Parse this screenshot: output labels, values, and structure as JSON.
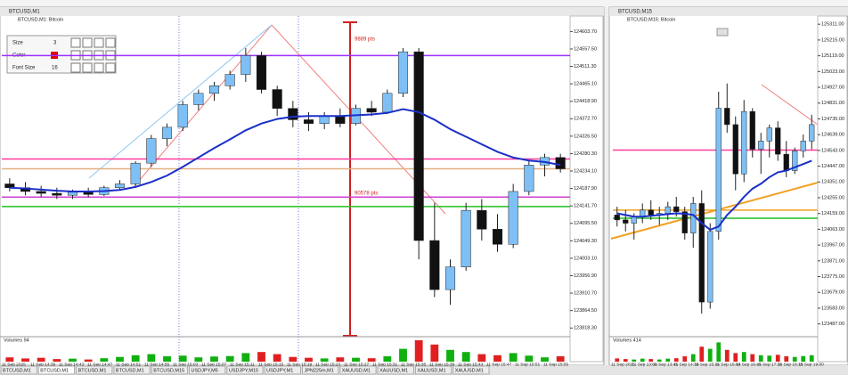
{
  "windows": [
    {
      "title": "BTCUSD,M1"
    },
    {
      "title": "BTCUSD,M15"
    }
  ],
  "toolbox": {
    "size_label": "Size",
    "size_value": "3",
    "color_label": "Color",
    "font_label": "Font Size",
    "font_value": "16"
  },
  "tabs": [
    "BTCUSD,M1",
    "BTCUSD,M1",
    "BTCUSD,M1",
    "BTCUSD,M1",
    "BTCUSD,M15",
    "USDJPY,M5",
    "USDJPY,M15",
    "USDJPY,M1",
    "JPN225m,M1",
    "XAUUSD,M1",
    "XAUUSD,M1",
    "XAUUSD,M1",
    "XAUUSD,M1"
  ],
  "chart_data": [
    {
      "type": "candlestick",
      "title": "BTCUSD,M1: Bitcoin",
      "ylim": [
        123800,
        124640
      ],
      "yticks": [
        {
          "value": 124603.7,
          "label": "124603.70"
        },
        {
          "value": 124557.5,
          "label": "124557.50"
        },
        {
          "value": 124511.3,
          "label": "124511.30"
        },
        {
          "value": 124465.1,
          "label": "124465.10"
        },
        {
          "value": 124418.9,
          "label": "124418.90"
        },
        {
          "value": 124372.7,
          "label": "124372.70"
        },
        {
          "value": 124326.5,
          "label": "124326.50"
        },
        {
          "value": 124280.3,
          "label": "124280.30"
        },
        {
          "value": 124234.1,
          "label": "124234.10"
        },
        {
          "value": 124187.9,
          "label": "124187.90"
        },
        {
          "value": 124141.7,
          "label": "124141.70"
        },
        {
          "value": 124095.5,
          "label": "124095.50"
        },
        {
          "value": 124049.3,
          "label": "124049.30"
        },
        {
          "value": 124003.1,
          "label": "124003.10"
        },
        {
          "value": 123956.9,
          "label": "123956.90"
        },
        {
          "value": 123910.7,
          "label": "123910.70"
        },
        {
          "value": 123864.5,
          "label": "123864.50"
        },
        {
          "value": 123818.3,
          "label": "123818.30"
        }
      ],
      "open": [
        124200,
        124190,
        124180,
        124175,
        124170,
        124178,
        124172,
        124190,
        124200,
        124255,
        124320,
        124350,
        124410,
        124440,
        124460,
        124490,
        124540,
        124450,
        124400,
        124370,
        124360,
        124380,
        124360,
        124400,
        124390,
        124440,
        124550,
        124050,
        123920,
        123980,
        124130,
        124080,
        124040,
        124180,
        124250,
        124270
      ],
      "high": [
        124215,
        124205,
        124195,
        124190,
        124185,
        124190,
        124195,
        124210,
        124260,
        124330,
        124360,
        124420,
        124450,
        124470,
        124500,
        124560,
        124550,
        124460,
        124420,
        124390,
        124390,
        124400,
        124410,
        124420,
        124450,
        124560,
        124560,
        124150,
        124000,
        124150,
        124160,
        124120,
        124200,
        124260,
        124280,
        124280
      ],
      "low": [
        124180,
        124170,
        124165,
        124160,
        124160,
        124165,
        124168,
        124185,
        124195,
        124245,
        124300,
        124340,
        124395,
        124420,
        124450,
        124470,
        124440,
        124380,
        124350,
        124340,
        124345,
        124350,
        124355,
        124380,
        124385,
        124430,
        124000,
        123900,
        123880,
        123970,
        124050,
        124020,
        124030,
        124170,
        124220,
        124230
      ],
      "close": [
        124190,
        124180,
        124175,
        124170,
        124178,
        124172,
        124190,
        124200,
        124255,
        124320,
        124350,
        124410,
        124440,
        124460,
        124490,
        124540,
        124450,
        124400,
        124370,
        124360,
        124380,
        124360,
        124400,
        124390,
        124440,
        124550,
        124050,
        123920,
        123980,
        124130,
        124080,
        124040,
        124180,
        124250,
        124270,
        124240
      ],
      "ma": {
        "color": "#1a2fc8",
        "values": [
          124190,
          124188,
          124185,
          124182,
          124180,
          124180,
          124181,
          124184,
          124192,
          124205,
          124222,
          124245,
          124270,
          124295,
          124318,
          124342,
          124360,
          124372,
          124378,
          124380,
          124380,
          124380,
          124382,
          124384,
          124388,
          124398,
          124390,
          124370,
          124345,
          124325,
          124305,
          124285,
          124270,
          124262,
          124258,
          124250
        ]
      },
      "levels": [
        {
          "value": 124540,
          "color": "#9b30ff"
        },
        {
          "value": 124266,
          "color": "#ff3c9e"
        },
        {
          "value": 124240,
          "color": "#e0b080"
        },
        {
          "value": 124165,
          "color": "#d040d0"
        },
        {
          "value": 124140,
          "color": "#22c022"
        }
      ],
      "annotations": [
        "9889 pts",
        "90578 pts"
      ],
      "volume_label": "Volumes 94",
      "vlim": [
        0,
        100
      ],
      "volumes": [
        20,
        15,
        18,
        12,
        14,
        10,
        16,
        22,
        30,
        35,
        25,
        28,
        20,
        24,
        26,
        40,
        45,
        35,
        22,
        18,
        15,
        20,
        18,
        16,
        25,
        60,
        100,
        80,
        55,
        45,
        35,
        30,
        40,
        28,
        20,
        25
      ],
      "xlabels": [
        "11 Sep 2025",
        "11 Sep 14:39",
        "11 Sep 14:43",
        "11 Sep 14:47",
        "11 Sep 14:51",
        "11 Sep 14:55",
        "11 Sep 15:03",
        "11 Sep 15:07",
        "11 Sep 15:11",
        "11 Sep 15:15",
        "11 Sep 15:19",
        "11 Sep 15:23",
        "11 Sep 15:27",
        "11 Sep 15:31",
        "11 Sep 15:35",
        "11 Sep 15:39",
        "11 Sep 15:43",
        "11 Sep 15:47",
        "11 Sep 15:51",
        "11 Sep 15:55"
      ]
    },
    {
      "type": "candlestick",
      "title": "BTCUSD,M15: Bitcoin",
      "ylim": [
        123420,
        125350
      ],
      "yticks": [
        {
          "value": 125311,
          "label": "125311.00"
        },
        {
          "value": 125215,
          "label": "125215.00"
        },
        {
          "value": 125119,
          "label": "125119.00"
        },
        {
          "value": 125023,
          "label": "125023.00"
        },
        {
          "value": 124927,
          "label": "124927.00"
        },
        {
          "value": 124831,
          "label": "124831.00"
        },
        {
          "value": 124735,
          "label": "124735.00"
        },
        {
          "value": 124639,
          "label": "124639.00"
        },
        {
          "value": 124543,
          "label": "124543.00"
        },
        {
          "value": 124447,
          "label": "124447.00"
        },
        {
          "value": 124351,
          "label": "124351.00"
        },
        {
          "value": 124255,
          "label": "124255.00"
        },
        {
          "value": 124159,
          "label": "124159.00"
        },
        {
          "value": 124063,
          "label": "124063.00"
        },
        {
          "value": 123967,
          "label": "123967.00"
        },
        {
          "value": 123871,
          "label": "123871.00"
        },
        {
          "value": 123775,
          "label": "123775.00"
        },
        {
          "value": 123679,
          "label": "123679.00"
        },
        {
          "value": 123583,
          "label": "123583.00"
        },
        {
          "value": 123487,
          "label": "123487.00"
        }
      ],
      "open": [
        124150,
        124120,
        124100,
        124140,
        124180,
        124150,
        124160,
        124200,
        124170,
        124040,
        124220,
        123620,
        124050,
        124800,
        124700,
        124400,
        124780,
        124550,
        124600,
        124680,
        124520,
        124420,
        124540,
        124600
      ],
      "high": [
        124200,
        124180,
        124160,
        124220,
        124240,
        124200,
        124230,
        124260,
        124200,
        124260,
        124300,
        124100,
        124900,
        124950,
        124750,
        124850,
        124800,
        124650,
        124700,
        124720,
        124600,
        124560,
        124640,
        124760
      ],
      "low": [
        124080,
        124050,
        124000,
        124100,
        124120,
        124090,
        124120,
        124140,
        124000,
        123950,
        123550,
        123580,
        124000,
        124650,
        124300,
        124350,
        124500,
        124400,
        124500,
        124480,
        124380,
        124400,
        124500,
        124550
      ],
      "close": [
        124120,
        124100,
        124140,
        124180,
        124150,
        124160,
        124200,
        124170,
        124040,
        124220,
        123620,
        124050,
        124800,
        124700,
        124400,
        124780,
        124550,
        124600,
        124680,
        124520,
        124420,
        124540,
        124600,
        124700
      ],
      "ma": {
        "color": "#1a2fc8",
        "values": [
          124160,
          124150,
          124140,
          124140,
          124145,
          124150,
          124155,
          124160,
          124158,
          124150,
          124100,
          124060,
          124080,
          124150,
          124200,
          124260,
          124310,
          124340,
          124380,
          124410,
          124420,
          124440,
          124460,
          124480
        ]
      },
      "levels": [
        {
          "value": 124545,
          "color": "#ff3c9e"
        },
        {
          "value": 124180,
          "color": "#f0a020"
        },
        {
          "value": 124130,
          "color": "#22c022"
        }
      ],
      "annotations": [],
      "volume_label": "Volumes 414",
      "vlim": [
        0,
        100
      ],
      "volumes": [
        15,
        12,
        10,
        14,
        12,
        10,
        14,
        16,
        25,
        35,
        70,
        60,
        90,
        55,
        40,
        45,
        35,
        30,
        28,
        32,
        25,
        22,
        26,
        30
      ],
      "xlabels": [
        "11 Sep 2025",
        "11 Sep 13:00",
        "11 Sep 13:45",
        "11 Sep 14:30",
        "11 Sep 15:15",
        "11 Sep 16:00",
        "11 Sep 16:45",
        "11 Sep 17:30",
        "11 Sep 18:15",
        "11 Sep 19:00"
      ]
    }
  ]
}
